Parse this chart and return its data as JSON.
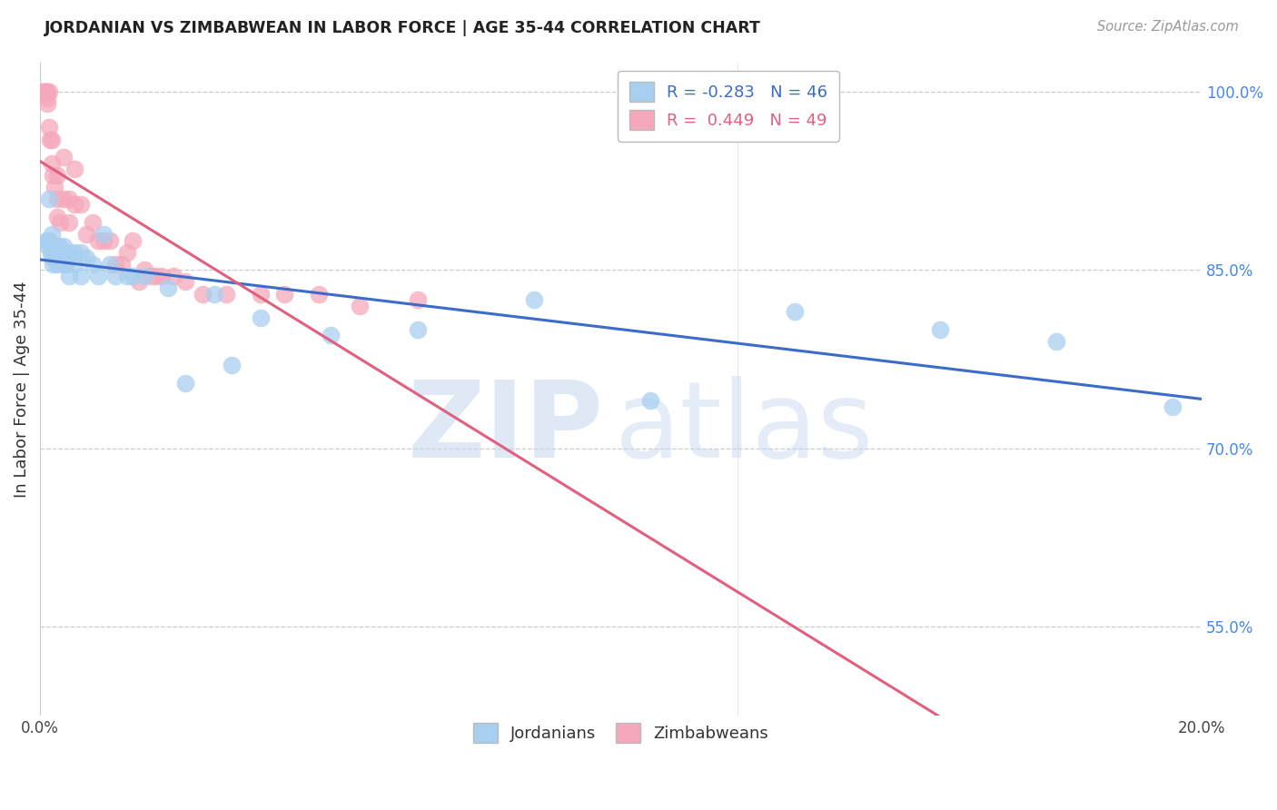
{
  "title": "JORDANIAN VS ZIMBABWEAN IN LABOR FORCE | AGE 35-44 CORRELATION CHART",
  "source": "Source: ZipAtlas.com",
  "ylabel": "In Labor Force | Age 35-44",
  "xlim": [
    0.0,
    0.2
  ],
  "ylim": [
    0.475,
    1.025
  ],
  "jordan_R": -0.283,
  "jordan_N": 46,
  "zimbab_R": 0.449,
  "zimbab_N": 49,
  "jordan_color": "#A8CFF0",
  "zimbab_color": "#F5A8BC",
  "jordan_line_color": "#3B6CC9",
  "zimbab_line_color": "#E06080",
  "yticks_right": [
    1.0,
    0.85,
    0.7,
    0.55
  ],
  "ytick_labels_right": [
    "100.0%",
    "85.0%",
    "70.0%",
    "55.0%"
  ],
  "jordan_x": [
    0.001,
    0.0012,
    0.0013,
    0.0015,
    0.0016,
    0.0018,
    0.002,
    0.002,
    0.0022,
    0.0025,
    0.003,
    0.003,
    0.0032,
    0.0035,
    0.004,
    0.004,
    0.0042,
    0.0045,
    0.005,
    0.005,
    0.006,
    0.006,
    0.007,
    0.007,
    0.008,
    0.009,
    0.01,
    0.011,
    0.012,
    0.013,
    0.015,
    0.016,
    0.018,
    0.022,
    0.025,
    0.03,
    0.033,
    0.038,
    0.05,
    0.065,
    0.085,
    0.105,
    0.13,
    0.155,
    0.175,
    0.195
  ],
  "jordan_y": [
    0.875,
    0.87,
    0.875,
    0.91,
    0.875,
    0.865,
    0.86,
    0.88,
    0.855,
    0.865,
    0.87,
    0.855,
    0.87,
    0.86,
    0.855,
    0.87,
    0.86,
    0.855,
    0.865,
    0.845,
    0.855,
    0.865,
    0.865,
    0.845,
    0.86,
    0.855,
    0.845,
    0.88,
    0.855,
    0.845,
    0.845,
    0.845,
    0.845,
    0.835,
    0.755,
    0.83,
    0.77,
    0.81,
    0.795,
    0.8,
    0.825,
    0.74,
    0.815,
    0.8,
    0.79,
    0.735
  ],
  "zimbab_x": [
    0.0003,
    0.0005,
    0.0007,
    0.001,
    0.001,
    0.001,
    0.0012,
    0.0013,
    0.0015,
    0.0015,
    0.0017,
    0.002,
    0.002,
    0.0022,
    0.0025,
    0.003,
    0.003,
    0.003,
    0.0035,
    0.004,
    0.004,
    0.005,
    0.005,
    0.006,
    0.006,
    0.007,
    0.008,
    0.009,
    0.01,
    0.011,
    0.012,
    0.013,
    0.014,
    0.015,
    0.016,
    0.017,
    0.018,
    0.019,
    0.02,
    0.021,
    0.023,
    0.025,
    0.028,
    0.032,
    0.038,
    0.042,
    0.048,
    0.055,
    0.065
  ],
  "zimbab_y": [
    1.0,
    1.0,
    1.0,
    1.0,
    1.0,
    1.0,
    0.995,
    0.99,
    0.97,
    1.0,
    0.96,
    0.96,
    0.94,
    0.93,
    0.92,
    0.93,
    0.91,
    0.895,
    0.89,
    0.945,
    0.91,
    0.91,
    0.89,
    0.935,
    0.905,
    0.905,
    0.88,
    0.89,
    0.875,
    0.875,
    0.875,
    0.855,
    0.855,
    0.865,
    0.875,
    0.84,
    0.85,
    0.845,
    0.845,
    0.845,
    0.845,
    0.84,
    0.83,
    0.83,
    0.83,
    0.83,
    0.83,
    0.82,
    0.825
  ]
}
